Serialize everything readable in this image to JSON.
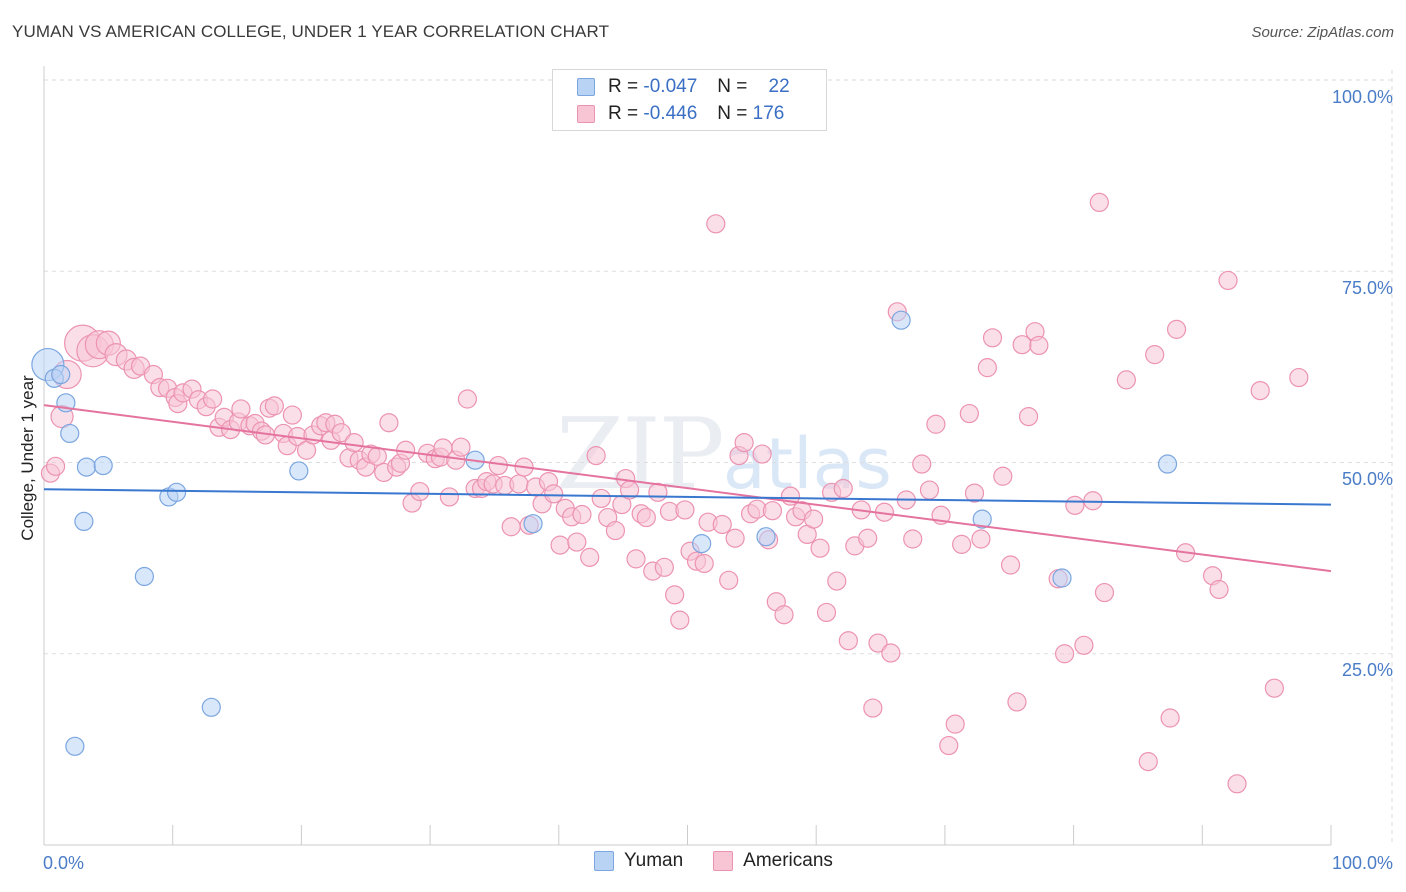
{
  "title": "YUMAN VS AMERICAN COLLEGE, UNDER 1 YEAR CORRELATION CHART",
  "source": "Source: ZipAtlas.com",
  "watermark": {
    "zip": "ZIP",
    "atlas": "atlas"
  },
  "legend": {
    "rows": [
      {
        "r_label": "R =",
        "r_value": "-0.047",
        "n_label": "N =",
        "n_value": "22"
      },
      {
        "r_label": "R =",
        "r_value": "-0.446",
        "n_label": "N =",
        "n_value": "176"
      }
    ]
  },
  "bottom_legend": [
    "Yuman",
    "Americans"
  ],
  "colors": {
    "yuman_fill": "#b9d3f5",
    "yuman_stroke": "#7ba6e0",
    "yuman_line": "#3a78cf",
    "americans_fill": "#f8c5d5",
    "americans_stroke": "#ec93b1",
    "americans_line": "#e4739e",
    "grid": "#dddddd",
    "tick_text": "#4a7cc7"
  },
  "chart_data": {
    "type": "scatter",
    "xlabel": "",
    "ylabel": "College, Under 1 year",
    "xlim": [
      0,
      100
    ],
    "ylim": [
      0,
      100
    ],
    "x_tick_labels": [
      "0.0%",
      "100.0%"
    ],
    "y_tick_labels": [
      "25.0%",
      "50.0%",
      "75.0%",
      "100.0%"
    ],
    "y_ticks": [
      25,
      50,
      75,
      100
    ],
    "grid": true,
    "legend_position": "top-center",
    "series": [
      {
        "name": "Yuman",
        "trend": {
          "x": [
            0,
            100
          ],
          "y": [
            46.5,
            44.5
          ]
        },
        "points": [
          [
            0.3,
            62.8,
            16
          ],
          [
            0.8,
            61.0,
            9
          ],
          [
            1.3,
            61.5,
            9
          ],
          [
            1.7,
            57.8,
            9
          ],
          [
            2.0,
            53.8,
            9
          ],
          [
            3.1,
            42.3,
            9
          ],
          [
            3.3,
            49.4,
            9
          ],
          [
            4.6,
            49.6,
            9
          ],
          [
            7.8,
            35.1,
            9
          ],
          [
            9.7,
            45.5,
            9
          ],
          [
            10.3,
            46.1,
            9
          ],
          [
            13.0,
            18.0,
            9
          ],
          [
            2.4,
            12.9,
            9
          ],
          [
            19.8,
            48.9,
            9
          ],
          [
            33.5,
            50.3,
            9
          ],
          [
            38.0,
            42.0,
            9
          ],
          [
            51.1,
            39.4,
            9
          ],
          [
            56.1,
            40.3,
            9
          ],
          [
            66.6,
            68.6,
            9
          ],
          [
            72.9,
            42.6,
            9
          ],
          [
            79.1,
            34.9,
            9
          ],
          [
            87.3,
            49.8,
            9
          ]
        ]
      },
      {
        "name": "Americans",
        "trend": {
          "x": [
            0,
            100
          ],
          "y": [
            57.5,
            35.8
          ]
        },
        "points": [
          [
            0.5,
            48.6,
            9
          ],
          [
            0.9,
            49.5,
            9
          ],
          [
            1.4,
            56.0,
            11
          ],
          [
            1.8,
            61.5,
            14
          ],
          [
            3.0,
            65.6,
            18
          ],
          [
            3.8,
            64.6,
            16
          ],
          [
            4.3,
            65.4,
            14
          ],
          [
            5.0,
            65.6,
            12
          ],
          [
            5.6,
            64.1,
            11
          ],
          [
            6.4,
            63.4,
            10
          ],
          [
            7.0,
            62.3,
            10
          ],
          [
            7.5,
            62.6,
            9
          ],
          [
            8.5,
            61.5,
            9
          ],
          [
            9.0,
            59.8,
            9
          ],
          [
            9.6,
            59.7,
            9
          ],
          [
            10.2,
            58.5,
            9
          ],
          [
            10.4,
            57.7,
            9
          ],
          [
            10.8,
            59.1,
            9
          ],
          [
            11.5,
            59.6,
            9
          ],
          [
            12.0,
            58.2,
            9
          ],
          [
            12.6,
            57.3,
            9
          ],
          [
            13.1,
            58.3,
            9
          ],
          [
            13.6,
            54.6,
            9
          ],
          [
            14.0,
            55.9,
            9
          ],
          [
            14.5,
            54.3,
            9
          ],
          [
            15.1,
            55.3,
            9
          ],
          [
            15.3,
            57.0,
            9
          ],
          [
            16.0,
            54.8,
            9
          ],
          [
            16.4,
            55.1,
            9
          ],
          [
            16.9,
            54.1,
            9
          ],
          [
            17.2,
            53.6,
            9
          ],
          [
            17.5,
            57.1,
            9
          ],
          [
            17.9,
            57.4,
            9
          ],
          [
            18.6,
            53.8,
            9
          ],
          [
            18.9,
            52.2,
            9
          ],
          [
            19.3,
            56.2,
            9
          ],
          [
            19.7,
            53.4,
            9
          ],
          [
            20.4,
            51.6,
            9
          ],
          [
            20.9,
            53.6,
            9
          ],
          [
            21.5,
            54.8,
            9
          ],
          [
            21.9,
            55.2,
            9
          ],
          [
            22.3,
            52.9,
            9
          ],
          [
            22.6,
            55.0,
            9
          ],
          [
            23.1,
            53.9,
            9
          ],
          [
            23.7,
            50.6,
            9
          ],
          [
            24.1,
            52.6,
            9
          ],
          [
            24.5,
            50.3,
            9
          ],
          [
            25.0,
            49.4,
            9
          ],
          [
            25.4,
            51.1,
            9
          ],
          [
            25.9,
            50.8,
            9
          ],
          [
            26.4,
            48.7,
            9
          ],
          [
            26.8,
            55.2,
            9
          ],
          [
            27.4,
            49.4,
            9
          ],
          [
            27.7,
            49.9,
            9
          ],
          [
            28.1,
            51.6,
            9
          ],
          [
            28.6,
            44.7,
            9
          ],
          [
            29.2,
            46.2,
            9
          ],
          [
            29.8,
            51.2,
            9
          ],
          [
            30.4,
            50.5,
            9
          ],
          [
            30.8,
            50.7,
            9
          ],
          [
            31.0,
            51.9,
            9
          ],
          [
            31.5,
            45.5,
            9
          ],
          [
            32.0,
            50.3,
            9
          ],
          [
            32.4,
            52.0,
            9
          ],
          [
            32.9,
            58.3,
            9
          ],
          [
            33.5,
            46.6,
            9
          ],
          [
            34.0,
            46.6,
            9
          ],
          [
            34.4,
            47.5,
            9
          ],
          [
            34.9,
            47.2,
            9
          ],
          [
            35.3,
            49.6,
            9
          ],
          [
            35.8,
            47.0,
            9
          ],
          [
            36.3,
            41.6,
            9
          ],
          [
            36.9,
            47.2,
            9
          ],
          [
            37.3,
            49.4,
            9
          ],
          [
            37.7,
            41.8,
            9
          ],
          [
            38.2,
            46.8,
            9
          ],
          [
            38.7,
            44.6,
            9
          ],
          [
            39.2,
            47.5,
            9
          ],
          [
            39.6,
            45.9,
            9
          ],
          [
            40.1,
            39.2,
            9
          ],
          [
            40.5,
            44.0,
            9
          ],
          [
            41.0,
            42.9,
            9
          ],
          [
            41.4,
            39.6,
            9
          ],
          [
            41.8,
            43.2,
            9
          ],
          [
            42.4,
            37.6,
            9
          ],
          [
            42.9,
            50.9,
            9
          ],
          [
            43.3,
            45.3,
            9
          ],
          [
            43.8,
            42.8,
            9
          ],
          [
            44.4,
            41.1,
            9
          ],
          [
            44.9,
            44.5,
            9
          ],
          [
            45.2,
            47.9,
            9
          ],
          [
            45.5,
            46.4,
            9
          ],
          [
            46.0,
            37.4,
            9
          ],
          [
            46.4,
            43.3,
            9
          ],
          [
            46.8,
            42.8,
            9
          ],
          [
            47.3,
            35.8,
            9
          ],
          [
            47.7,
            46.1,
            9
          ],
          [
            48.2,
            36.3,
            9
          ],
          [
            48.6,
            43.6,
            9
          ],
          [
            49.0,
            32.7,
            9
          ],
          [
            49.4,
            29.4,
            9
          ],
          [
            49.8,
            43.8,
            9
          ],
          [
            50.2,
            38.4,
            9
          ],
          [
            50.7,
            37.1,
            9
          ],
          [
            51.3,
            36.8,
            9
          ],
          [
            51.6,
            42.2,
            9
          ],
          [
            52.2,
            81.2,
            9
          ],
          [
            52.7,
            41.9,
            9
          ],
          [
            53.2,
            34.6,
            9
          ],
          [
            53.7,
            40.1,
            9
          ],
          [
            54.0,
            50.9,
            9
          ],
          [
            54.4,
            52.6,
            9
          ],
          [
            54.9,
            43.3,
            9
          ],
          [
            55.4,
            43.9,
            9
          ],
          [
            55.8,
            51.1,
            9
          ],
          [
            56.3,
            39.9,
            9
          ],
          [
            56.6,
            43.7,
            9
          ],
          [
            56.9,
            31.8,
            9
          ],
          [
            57.5,
            30.1,
            9
          ],
          [
            58.0,
            45.6,
            9
          ],
          [
            58.4,
            42.9,
            9
          ],
          [
            58.9,
            43.7,
            9
          ],
          [
            59.3,
            40.6,
            9
          ],
          [
            59.8,
            42.6,
            9
          ],
          [
            60.3,
            38.8,
            9
          ],
          [
            60.8,
            30.4,
            9
          ],
          [
            61.2,
            46.1,
            9
          ],
          [
            61.6,
            34.5,
            9
          ],
          [
            62.1,
            46.6,
            9
          ],
          [
            62.5,
            26.7,
            9
          ],
          [
            63.0,
            39.1,
            9
          ],
          [
            63.5,
            43.8,
            9
          ],
          [
            64.0,
            40.1,
            9
          ],
          [
            64.4,
            17.9,
            9
          ],
          [
            64.8,
            26.4,
            9
          ],
          [
            65.3,
            43.5,
            9
          ],
          [
            65.8,
            25.1,
            9
          ],
          [
            66.3,
            69.7,
            9
          ],
          [
            67.0,
            45.1,
            9
          ],
          [
            67.5,
            40.0,
            9
          ],
          [
            68.2,
            49.8,
            9
          ],
          [
            68.8,
            46.4,
            9
          ],
          [
            69.3,
            55.0,
            9
          ],
          [
            69.7,
            43.1,
            9
          ],
          [
            70.3,
            13.0,
            9
          ],
          [
            70.8,
            15.8,
            9
          ],
          [
            71.3,
            39.3,
            9
          ],
          [
            71.9,
            56.4,
            9
          ],
          [
            72.3,
            46.0,
            9
          ],
          [
            72.8,
            40.0,
            9
          ],
          [
            73.3,
            62.4,
            9
          ],
          [
            73.7,
            66.3,
            9
          ],
          [
            74.5,
            48.2,
            9
          ],
          [
            75.1,
            36.6,
            9
          ],
          [
            75.6,
            18.7,
            9
          ],
          [
            76.0,
            65.4,
            9
          ],
          [
            76.5,
            56.0,
            9
          ],
          [
            77.0,
            67.1,
            9
          ],
          [
            77.3,
            65.3,
            9
          ],
          [
            78.8,
            34.8,
            9
          ],
          [
            79.3,
            25.0,
            9
          ],
          [
            80.1,
            44.4,
            9
          ],
          [
            80.8,
            26.1,
            9
          ],
          [
            81.5,
            45.0,
            9
          ],
          [
            82.0,
            84.0,
            9
          ],
          [
            82.4,
            33.0,
            9
          ],
          [
            84.1,
            60.8,
            9
          ],
          [
            85.8,
            10.9,
            9
          ],
          [
            86.3,
            64.1,
            9
          ],
          [
            87.5,
            16.6,
            9
          ],
          [
            88.0,
            67.4,
            9
          ],
          [
            88.7,
            38.2,
            9
          ],
          [
            90.8,
            35.2,
            9
          ],
          [
            91.3,
            33.4,
            9
          ],
          [
            92.0,
            73.8,
            9
          ],
          [
            92.7,
            8.0,
            9
          ],
          [
            94.5,
            59.4,
            9
          ],
          [
            95.6,
            20.5,
            9
          ],
          [
            97.5,
            61.1,
            9
          ]
        ]
      }
    ]
  }
}
